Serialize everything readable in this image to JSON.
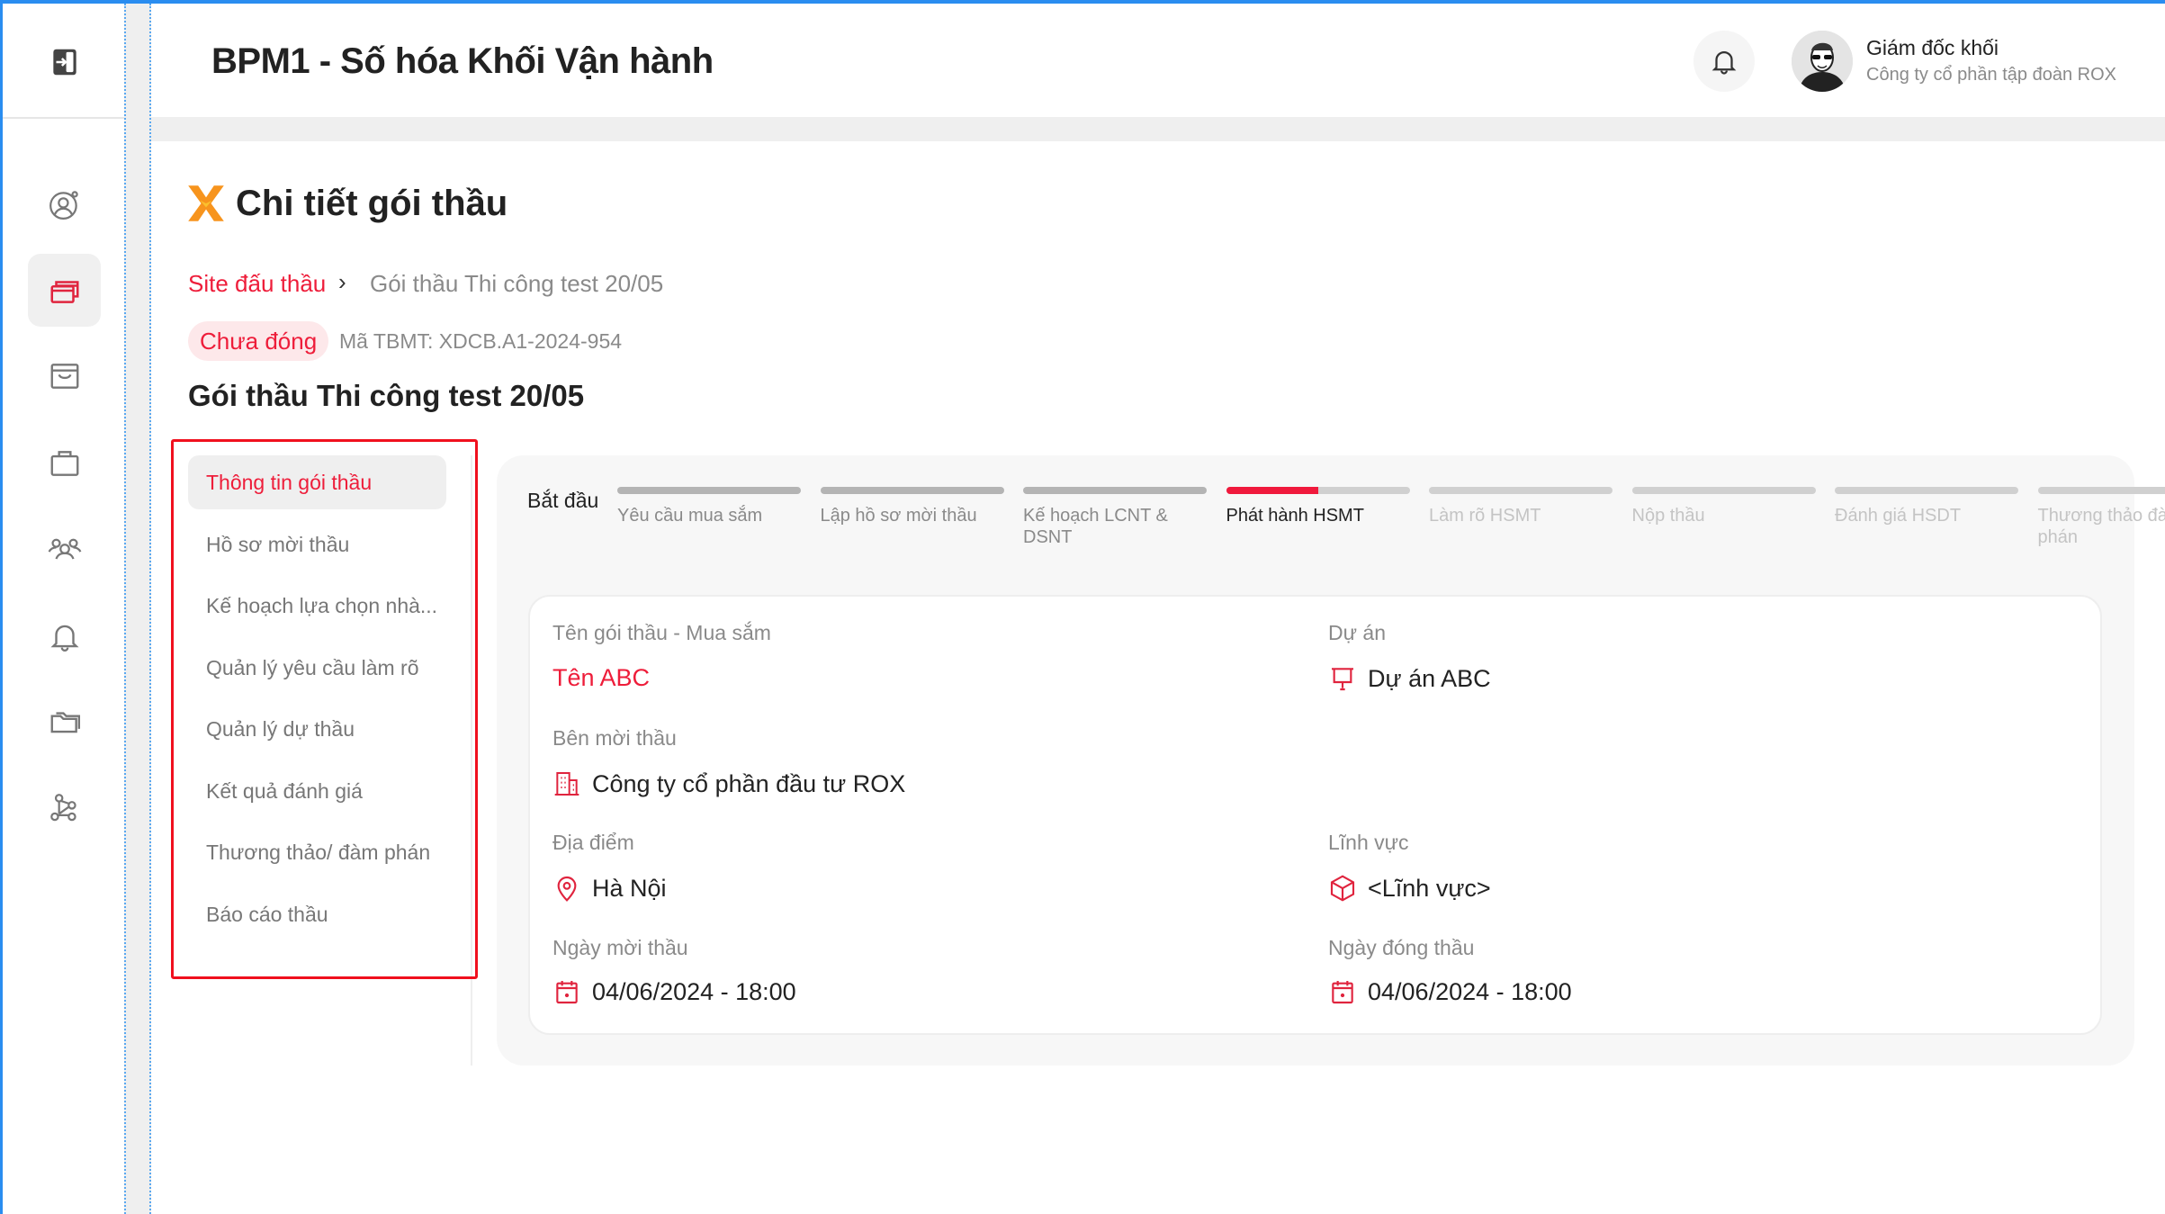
{
  "colors": {
    "accent": "#ee1d3a",
    "frame": "#2a8df0",
    "step_done": "#b4b4b4",
    "step_future": "#d0d0d0"
  },
  "app": {
    "title": "BPM1 - Số hóa Khối Vận hành"
  },
  "sidebar": {
    "items": [
      {
        "icon": "log-in-icon"
      },
      {
        "icon": "user-settings-icon"
      },
      {
        "icon": "windows-icon",
        "active": true
      },
      {
        "icon": "inbox-icon"
      },
      {
        "icon": "briefcase-icon"
      },
      {
        "icon": "users-icon"
      },
      {
        "icon": "bell-icon"
      },
      {
        "icon": "folders-icon"
      },
      {
        "icon": "network-icon"
      }
    ]
  },
  "header": {
    "notification_icon": "bell-icon",
    "user": {
      "name": "Giám đốc khối",
      "company": "Công ty cổ phần tập đoàn ROX"
    }
  },
  "page": {
    "title": "Chi tiết gói thầu",
    "breadcrumb": {
      "root": "Site đấu thầu",
      "separator": "›",
      "current": "Gói thầu Thi công test 20/05"
    },
    "status": "Chưa đóng",
    "code": "Mã TBMT: XDCB.A1-2024-954",
    "package_title": "Gói thầu Thi công test 20/05"
  },
  "menu": {
    "items": [
      {
        "label": "Thông tin gói thầu",
        "active": true
      },
      {
        "label": "Hồ sơ mời thầu"
      },
      {
        "label": "Kế hoạch lựa chọn nhà..."
      },
      {
        "label": "Quản lý yêu cầu làm rõ"
      },
      {
        "label": "Quản lý dự thầu"
      },
      {
        "label": "Kết quả đánh giá"
      },
      {
        "label": "Thương thảo/ đàm phán"
      },
      {
        "label": "Báo cáo thầu"
      }
    ]
  },
  "stepper": {
    "start_label": "Bắt đầu",
    "steps": [
      {
        "label": "Yêu cầu mua sắm",
        "state": "done"
      },
      {
        "label": "Lập hồ sơ mời thầu",
        "state": "done"
      },
      {
        "label": "Kế hoạch LCNT & DSNT",
        "state": "done"
      },
      {
        "label": "Phát hành HSMT",
        "state": "current",
        "progress": 0.5
      },
      {
        "label": "Làm rõ HSMT",
        "state": "future"
      },
      {
        "label": "Nộp thầu",
        "state": "future"
      },
      {
        "label": "Đánh giá HSDT",
        "state": "future"
      },
      {
        "label": "Thương thảo đàm phán",
        "state": "future"
      }
    ]
  },
  "info": {
    "package_name": {
      "label": "Tên gói thầu - Mua sắm",
      "value": "Tên ABC"
    },
    "project": {
      "label": "Dự án",
      "value": "Dự án ABC",
      "icon": "presentation-icon"
    },
    "inviter": {
      "label": "Bên mời thầu",
      "value": "Công ty cổ phần đầu tư ROX",
      "icon": "building-icon"
    },
    "location": {
      "label": "Địa điểm",
      "value": "Hà Nội",
      "icon": "map-pin-icon"
    },
    "field": {
      "label": "Lĩnh vực",
      "value": "<Lĩnh vực>",
      "icon": "box-icon"
    },
    "open_date": {
      "label": "Ngày mời thầu",
      "value": "04/06/2024 - 18:00",
      "icon": "calendar-icon"
    },
    "close_date": {
      "label": "Ngày đóng thầu",
      "value": "04/06/2024 - 18:00",
      "icon": "calendar-icon"
    }
  }
}
